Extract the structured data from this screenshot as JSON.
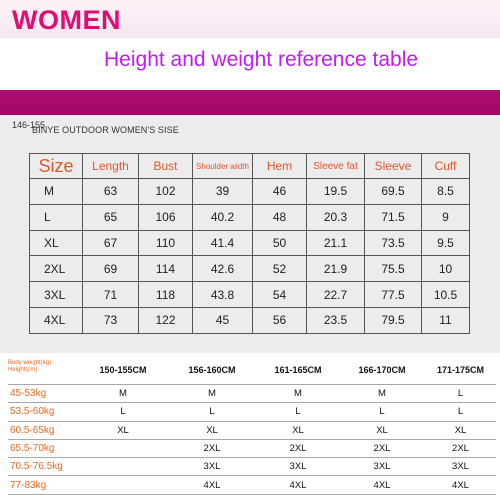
{
  "header": {
    "women": "WOMEN",
    "subtitle": "Height and weight reference table"
  },
  "brand": {
    "number": "146",
    "text": "BINYE OUTDOOR WOMEN'S  SISE",
    "overlap": "155"
  },
  "size_table": {
    "headers": [
      "Size",
      "Length",
      "Bust",
      "Shoulder width",
      "Hem",
      "Sleeve fat",
      "Sleeve",
      "Cuff"
    ],
    "rows": [
      [
        "M",
        "63",
        "102",
        "39",
        "46",
        "19.5",
        "69.5",
        "8.5"
      ],
      [
        "L",
        "65",
        "106",
        "40.2",
        "48",
        "20.3",
        "71.5",
        "9"
      ],
      [
        "XL",
        "67",
        "110",
        "41.4",
        "50",
        "21.1",
        "73.5",
        "9.5"
      ],
      [
        "2XL",
        "69",
        "114",
        "42.6",
        "52",
        "21.9",
        "75.5",
        "10"
      ],
      [
        "3XL",
        "71",
        "118",
        "43.8",
        "54",
        "22.7",
        "77.5",
        "10.5"
      ],
      [
        "4XL",
        "73",
        "122",
        "45",
        "56",
        "23.5",
        "79.5",
        "11"
      ]
    ]
  },
  "reference_table": {
    "corner_line1": "Body weight(kg)",
    "corner_line2": "Height(cm)",
    "heights": [
      "150-155CM",
      "156-160CM",
      "161-165CM",
      "166-170CM",
      "171-175CM"
    ],
    "rows": [
      {
        "weight": "45-53kg",
        "cells": [
          "M",
          "M",
          "M",
          "M",
          "L"
        ]
      },
      {
        "weight": "53.5-60kg",
        "cells": [
          "L",
          "L",
          "L",
          "L",
          "L"
        ]
      },
      {
        "weight": "60.5-65kg",
        "cells": [
          "XL",
          "XL",
          "XL",
          "XL",
          "XL"
        ]
      },
      {
        "weight": "65.5-70kg",
        "cells": [
          "",
          "2XL",
          "2XL",
          "2XL",
          "2XL"
        ]
      },
      {
        "weight": "70.5-76.5kg",
        "cells": [
          "",
          "3XL",
          "3XL",
          "3XL",
          "3XL"
        ]
      },
      {
        "weight": "77-83kg",
        "cells": [
          "",
          "4XL",
          "4XL",
          "4XL",
          "4XL"
        ]
      }
    ]
  },
  "colors": {
    "women_title": "#e30c72",
    "subtitle": "#c21cf0",
    "band": "#a8096a",
    "header_text": "#e3562a",
    "weight_text": "#e86a1e"
  }
}
